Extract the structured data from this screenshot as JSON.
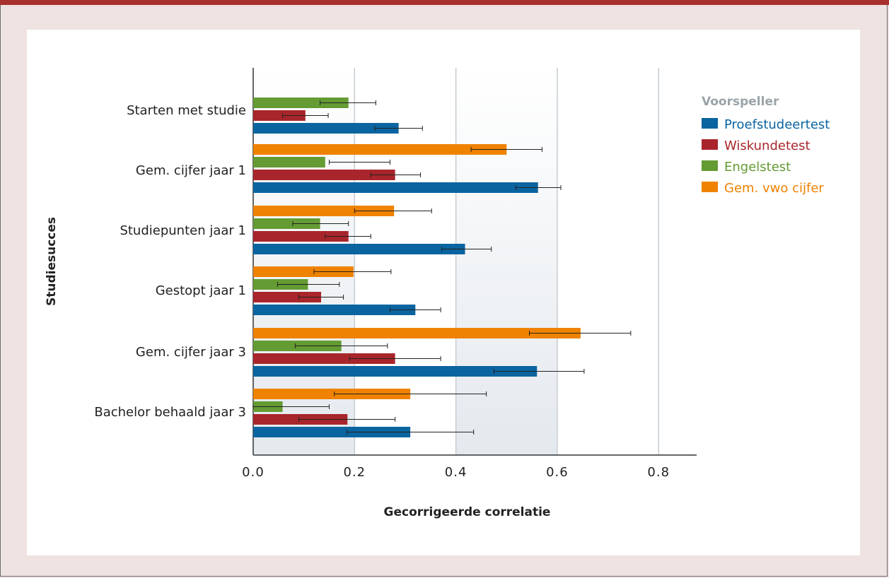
{
  "chart_data": {
    "type": "bar",
    "orientation": "horizontal",
    "xlabel": "Gecorrigeerde correlatie",
    "ylabel": "Studiesucces",
    "xlim": [
      0,
      0.875
    ],
    "xticks": [
      "0.0",
      "0.2",
      "0.4",
      "0.6",
      "0.8"
    ],
    "xtick_values": [
      0,
      0.2,
      0.4,
      0.6,
      0.8
    ],
    "grid": true,
    "legend_position": "top-right",
    "legend_title": "Voorspeller",
    "categories": [
      "Starten met studie",
      "Gem. cijfer jaar 1",
      "Studiepunten jaar 1",
      "Gestopt jaar 1",
      "Gem. cijfer jaar 3",
      "Bachelor behaald jaar 3"
    ],
    "series": [
      {
        "name": "Proefstudeertest",
        "color": "#0a64a0",
        "values": [
          0.287,
          0.562,
          0.418,
          0.32,
          0.56,
          0.31
        ],
        "err_low": [
          0.24,
          0.518,
          0.372,
          0.27,
          0.475,
          0.185
        ],
        "err_high": [
          0.334,
          0.607,
          0.47,
          0.37,
          0.653,
          0.435
        ]
      },
      {
        "name": "Wiskundetest",
        "color": "#a8262b",
        "values": [
          0.103,
          0.28,
          0.188,
          0.134,
          0.28,
          0.186
        ],
        "err_low": [
          0.058,
          0.232,
          0.142,
          0.09,
          0.19,
          0.09
        ],
        "err_high": [
          0.148,
          0.33,
          0.232,
          0.178,
          0.37,
          0.28
        ]
      },
      {
        "name": "Engelstest",
        "color": "#649b33",
        "values": [
          0.188,
          0.142,
          0.132,
          0.108,
          0.174,
          0.058
        ],
        "err_low": [
          0.132,
          0.15,
          0.078,
          0.048,
          0.083,
          0
        ],
        "err_high": [
          0.242,
          0.27,
          0.188,
          0.17,
          0.265,
          0.15
        ]
      },
      {
        "name": "Gem. vwo cijfer",
        "color": "#ef8200",
        "values": [
          null,
          0.5,
          0.278,
          0.198,
          0.646,
          0.31
        ],
        "err_low": [
          null,
          0.43,
          0.2,
          0.12,
          0.545,
          0.16
        ],
        "err_high": [
          null,
          0.57,
          0.352,
          0.272,
          0.745,
          0.46
        ]
      }
    ]
  }
}
